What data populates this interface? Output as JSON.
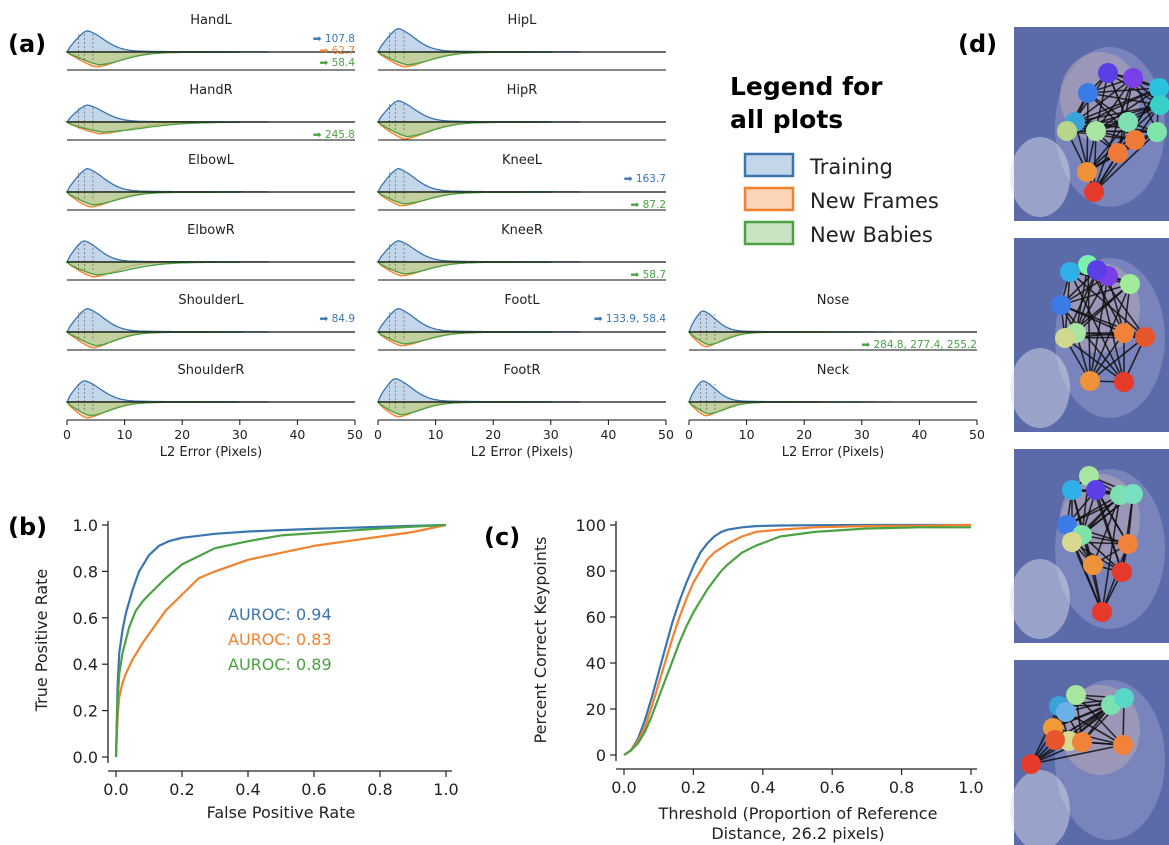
{
  "panel_labels": {
    "a": "(a)",
    "b": "(b)",
    "c": "(c)",
    "d": "(d)"
  },
  "legend": {
    "title_line1": "Legend for",
    "title_line2": "all plots",
    "items": [
      {
        "label": "Training",
        "color": "#3a75b0",
        "fill": "#c4d6ea"
      },
      {
        "label": "New Frames",
        "color": "#f28230",
        "fill": "#fbd5b5"
      },
      {
        "label": "New Babies",
        "color": "#4aa243",
        "fill": "#c9e4c2"
      }
    ]
  },
  "colors": {
    "training": "#3a75b0",
    "new_frames": "#f28230",
    "new_babies": "#4aa243"
  },
  "chart_data": [
    {
      "type": "area",
      "panel": "a",
      "xlabel": "L2 Error (Pixels)",
      "xlim": [
        0,
        50
      ],
      "x_ticks": [
        "0",
        "10",
        "20",
        "30",
        "40",
        "50"
      ],
      "subplots": [
        {
          "title": "HandL",
          "annotations": [
            {
              "text": "➡ 107.8",
              "series": "Training"
            },
            {
              "text": "➡ 62.7",
              "series": "New Frames"
            },
            {
              "text": "➡ 58.4",
              "series": "New Babies"
            }
          ]
        },
        {
          "title": "HandR",
          "annotations": [
            {
              "text": "➡ 245.8",
              "series": "New Babies"
            }
          ]
        },
        {
          "title": "ElbowL",
          "annotations": []
        },
        {
          "title": "ElbowR",
          "annotations": []
        },
        {
          "title": "ShoulderL",
          "annotations": [
            {
              "text": "➡ 84.9",
              "series": "Training"
            }
          ]
        },
        {
          "title": "ShoulderR",
          "annotations": []
        },
        {
          "title": "HipL",
          "annotations": []
        },
        {
          "title": "HipR",
          "annotations": []
        },
        {
          "title": "KneeL",
          "annotations": [
            {
              "text": "➡ 163.7",
              "series": "Training"
            },
            {
              "text": "➡ 87.2",
              "series": "New Babies"
            }
          ]
        },
        {
          "title": "KneeR",
          "annotations": [
            {
              "text": "➡ 58.7",
              "series": "New Babies"
            }
          ]
        },
        {
          "title": "FootL",
          "annotations": [
            {
              "text": "➡ 133.9, 58.4",
              "series": "Training"
            }
          ]
        },
        {
          "title": "FootR",
          "annotations": []
        },
        {
          "title": "Nose",
          "annotations": [
            {
              "text": "➡ 284.8, 277.4, 255.2",
              "series": "New Babies"
            }
          ]
        },
        {
          "title": "Neck",
          "annotations": []
        }
      ]
    },
    {
      "type": "line",
      "panel": "b",
      "xlabel": "False Positive Rate",
      "ylabel": "True Positive Rate",
      "xlim": [
        0,
        1
      ],
      "ylim": [
        0,
        1
      ],
      "x_ticks": [
        "0.0",
        "0.2",
        "0.4",
        "0.6",
        "0.8",
        "1.0"
      ],
      "y_ticks": [
        "0.0",
        "0.2",
        "0.4",
        "0.6",
        "0.8",
        "1.0"
      ],
      "annotations": [
        "AUROC: 0.94",
        "AUROC: 0.83",
        "AUROC: 0.89"
      ],
      "series": [
        {
          "name": "Training",
          "color": "#3a75b0",
          "x": [
            0,
            0.005,
            0.01,
            0.02,
            0.03,
            0.05,
            0.07,
            0.1,
            0.13,
            0.16,
            0.2,
            0.3,
            0.4,
            0.5,
            0.6,
            0.7,
            0.8,
            0.9,
            1.0
          ],
          "y": [
            0,
            0.32,
            0.45,
            0.55,
            0.62,
            0.72,
            0.8,
            0.87,
            0.91,
            0.93,
            0.945,
            0.962,
            0.972,
            0.978,
            0.983,
            0.988,
            0.992,
            0.996,
            1.0
          ]
        },
        {
          "name": "New Frames",
          "color": "#f28230",
          "x": [
            0,
            0.005,
            0.01,
            0.02,
            0.03,
            0.05,
            0.08,
            0.1,
            0.15,
            0.2,
            0.25,
            0.3,
            0.4,
            0.5,
            0.6,
            0.7,
            0.8,
            0.9,
            1.0
          ],
          "y": [
            0,
            0.18,
            0.26,
            0.32,
            0.36,
            0.42,
            0.49,
            0.53,
            0.63,
            0.7,
            0.77,
            0.8,
            0.85,
            0.88,
            0.91,
            0.93,
            0.95,
            0.97,
            1.0
          ]
        },
        {
          "name": "New Babies",
          "color": "#4aa243",
          "x": [
            0,
            0.005,
            0.01,
            0.02,
            0.04,
            0.06,
            0.08,
            0.1,
            0.15,
            0.2,
            0.3,
            0.4,
            0.5,
            0.6,
            0.7,
            0.8,
            0.9,
            1.0
          ],
          "y": [
            0,
            0.25,
            0.36,
            0.45,
            0.56,
            0.63,
            0.67,
            0.7,
            0.77,
            0.83,
            0.9,
            0.93,
            0.955,
            0.965,
            0.975,
            0.985,
            0.993,
            1.0
          ]
        }
      ]
    },
    {
      "type": "line",
      "panel": "c",
      "xlabel": "Threshold (Proportion of Reference",
      "xlabel_line2": "Distance, 26.2 pixels)",
      "ylabel": "Percent Correct Keypoints",
      "xlim": [
        0,
        1
      ],
      "ylim": [
        0,
        100
      ],
      "x_ticks": [
        "0.0",
        "0.2",
        "0.4",
        "0.6",
        "0.8",
        "1.0"
      ],
      "y_ticks": [
        "0",
        "20",
        "40",
        "60",
        "80",
        "100"
      ],
      "series": [
        {
          "name": "Training",
          "color": "#3a75b0",
          "x": [
            0,
            0.02,
            0.04,
            0.06,
            0.08,
            0.1,
            0.12,
            0.14,
            0.16,
            0.18,
            0.2,
            0.22,
            0.24,
            0.26,
            0.28,
            0.3,
            0.34,
            0.38,
            0.45,
            0.55,
            0.7,
            0.85,
            1.0
          ],
          "y": [
            0,
            2,
            7,
            15,
            25,
            36,
            47,
            58,
            67,
            75,
            82,
            88,
            92,
            95,
            97,
            98,
            99,
            99.5,
            99.8,
            99.9,
            100,
            100,
            100
          ]
        },
        {
          "name": "New Frames",
          "color": "#f28230",
          "x": [
            0,
            0.02,
            0.04,
            0.06,
            0.08,
            0.1,
            0.12,
            0.14,
            0.16,
            0.18,
            0.2,
            0.22,
            0.24,
            0.26,
            0.28,
            0.3,
            0.34,
            0.38,
            0.45,
            0.55,
            0.7,
            0.85,
            1.0
          ],
          "y": [
            0,
            2,
            6,
            12,
            21,
            31,
            41,
            51,
            60,
            68,
            75,
            80,
            85,
            88,
            90,
            92,
            95,
            97,
            98,
            99,
            99.5,
            99.7,
            100
          ]
        },
        {
          "name": "New Babies",
          "color": "#4aa243",
          "x": [
            0,
            0.02,
            0.04,
            0.06,
            0.08,
            0.1,
            0.12,
            0.14,
            0.16,
            0.18,
            0.2,
            0.22,
            0.24,
            0.26,
            0.28,
            0.3,
            0.34,
            0.38,
            0.45,
            0.55,
            0.7,
            0.85,
            1.0
          ],
          "y": [
            0,
            2,
            5,
            10,
            17,
            25,
            33,
            41,
            49,
            56,
            62,
            67,
            72,
            76,
            80,
            83,
            88,
            91,
            95,
            97,
            98.5,
            99,
            99
          ]
        }
      ]
    }
  ]
}
